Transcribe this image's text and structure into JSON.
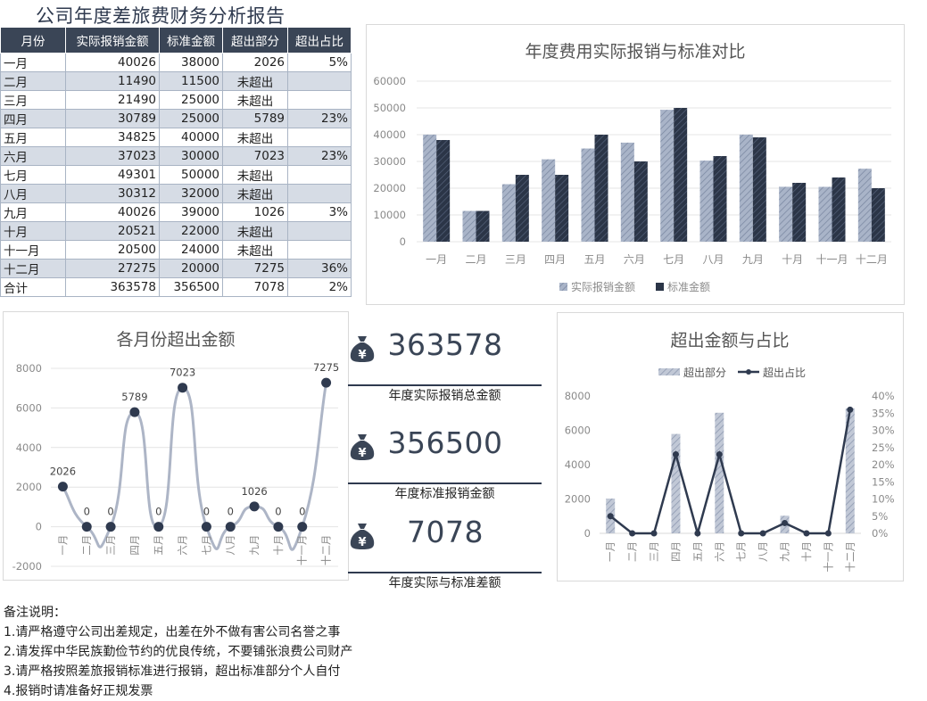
{
  "title": "公司年度差旅费财务分析报告",
  "table": {
    "headers": [
      "月份",
      "实际报销金额",
      "标准金额",
      "超出部分",
      "超出占比"
    ],
    "rows": [
      [
        "一月",
        "40026",
        "38000",
        "2026",
        "5%"
      ],
      [
        "二月",
        "11490",
        "11500",
        "未超出",
        ""
      ],
      [
        "三月",
        "21490",
        "25000",
        "未超出",
        ""
      ],
      [
        "四月",
        "30789",
        "25000",
        "5789",
        "23%"
      ],
      [
        "五月",
        "34825",
        "40000",
        "未超出",
        ""
      ],
      [
        "六月",
        "37023",
        "30000",
        "7023",
        "23%"
      ],
      [
        "七月",
        "49301",
        "50000",
        "未超出",
        ""
      ],
      [
        "八月",
        "30312",
        "32000",
        "未超出",
        ""
      ],
      [
        "九月",
        "40026",
        "39000",
        "1026",
        "3%"
      ],
      [
        "十月",
        "20521",
        "22000",
        "未超出",
        ""
      ],
      [
        "十一月",
        "20500",
        "24000",
        "未超出",
        ""
      ],
      [
        "十二月",
        "27275",
        "20000",
        "7275",
        "36%"
      ],
      [
        "合计",
        "363578",
        "356500",
        "7078",
        "2%"
      ]
    ]
  },
  "kpis": [
    {
      "value": "363578",
      "label": "年度实际报销总金额"
    },
    {
      "value": "356500",
      "label": "年度标准报销金额"
    },
    {
      "value": "7078",
      "label": "年度实际与标准差额"
    }
  ],
  "kpi_icon_glyph": "¥",
  "colors": {
    "dark": "#2f3a4f",
    "light": "#a9b4c8",
    "line_light": "#adb5c6"
  },
  "notes": [
    "备注说明：",
    "1.请严格遵守公司出差规定，出差在外不做有害公司名誉之事",
    "2.请发挥中华民族勤俭节约的优良传统，不要铺张浪费公司财产",
    "3.请严格按照差旅报销标准进行报销，超出标准部分个人自付",
    "4.报销时请准备好正规发票"
  ],
  "chart_data": [
    {
      "type": "bar",
      "title": "年度费用实际报销与标准对比",
      "categories": [
        "一月",
        "二月",
        "三月",
        "四月",
        "五月",
        "六月",
        "七月",
        "八月",
        "九月",
        "十月",
        "十一月",
        "十二月"
      ],
      "series": [
        {
          "name": "实际报销金额",
          "values": [
            40026,
            11490,
            21490,
            30789,
            34825,
            37023,
            49301,
            30312,
            40026,
            20521,
            20500,
            27275
          ]
        },
        {
          "name": "标准金额",
          "values": [
            38000,
            11500,
            25000,
            25000,
            40000,
            30000,
            50000,
            32000,
            39000,
            22000,
            24000,
            20000
          ]
        }
      ],
      "ylim": [
        0,
        60000
      ],
      "yticks": [
        "0",
        "10000",
        "20000",
        "30000",
        "40000",
        "50000",
        "60000"
      ],
      "legend": "bottom",
      "grid": true
    },
    {
      "type": "line",
      "title": "各月份超出金额",
      "categories": [
        "一月",
        "二月",
        "三月",
        "四月",
        "五月",
        "六月",
        "七月",
        "八月",
        "九月",
        "十月",
        "十一月",
        "十二月"
      ],
      "values": [
        2026,
        0,
        0,
        5789,
        0,
        7023,
        0,
        0,
        1026,
        0,
        0,
        7275
      ],
      "data_labels": [
        "2026",
        "0",
        "0",
        "5789",
        "0",
        "7023",
        "0",
        "0",
        "1026",
        "0",
        "0",
        "7275"
      ],
      "ylim": [
        -2000,
        8000
      ],
      "yticks": [
        "-2000",
        "0",
        "2000",
        "4000",
        "6000",
        "8000"
      ],
      "smooth": true,
      "grid": true
    },
    {
      "type": "bar",
      "title": "超出金额与占比",
      "categories": [
        "一月",
        "二月",
        "三月",
        "四月",
        "五月",
        "六月",
        "七月",
        "八月",
        "九月",
        "十月",
        "十一月",
        "十二月"
      ],
      "series": [
        {
          "name": "超出部分",
          "type": "bar",
          "values": [
            2026,
            0,
            0,
            5789,
            0,
            7023,
            0,
            0,
            1026,
            0,
            0,
            7275
          ]
        },
        {
          "name": "超出占比",
          "type": "line",
          "axis": "right",
          "values": [
            5,
            0,
            0,
            23,
            0,
            23,
            0,
            0,
            3,
            0,
            0,
            36
          ]
        }
      ],
      "ylim": [
        0,
        8000
      ],
      "yticks": [
        "0",
        "2000",
        "4000",
        "6000",
        "8000"
      ],
      "y2lim": [
        0,
        40
      ],
      "y2ticks": [
        "0%",
        "5%",
        "10%",
        "15%",
        "20%",
        "25%",
        "30%",
        "35%",
        "40%"
      ],
      "legend": "top",
      "grid": false
    }
  ]
}
